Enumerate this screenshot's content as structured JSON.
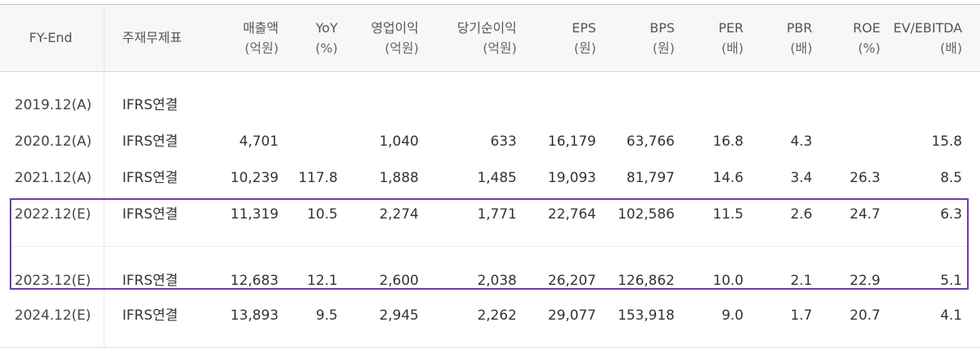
{
  "columns": [
    {
      "key": "fy",
      "label": "FY-End",
      "unit": ""
    },
    {
      "key": "std",
      "label": "주재무제표",
      "unit": ""
    },
    {
      "key": "sales",
      "label": "매출액",
      "unit": "(억원)"
    },
    {
      "key": "yoy",
      "label": "YoY",
      "unit": "(%)"
    },
    {
      "key": "op",
      "label": "영업이익",
      "unit": "(억원)"
    },
    {
      "key": "net",
      "label": "당기순이익",
      "unit": "(억원)"
    },
    {
      "key": "eps",
      "label": "EPS",
      "unit": "(원)"
    },
    {
      "key": "bps",
      "label": "BPS",
      "unit": "(원)"
    },
    {
      "key": "per",
      "label": "PER",
      "unit": "(배)"
    },
    {
      "key": "pbr",
      "label": "PBR",
      "unit": "(배)"
    },
    {
      "key": "roe",
      "label": "ROE",
      "unit": "(%)"
    },
    {
      "key": "ev",
      "label": "EV/EBITDA",
      "unit": "(배)"
    }
  ],
  "rows": [
    {
      "fy": "2019.12(A)",
      "std": "IFRS연결",
      "sales": "",
      "yoy": "",
      "op": "",
      "net": "",
      "eps": "",
      "bps": "",
      "per": "",
      "pbr": "",
      "roe": "",
      "ev": ""
    },
    {
      "fy": "2020.12(A)",
      "std": "IFRS연결",
      "sales": "4,701",
      "yoy": "",
      "op": "1,040",
      "net": "633",
      "eps": "16,179",
      "bps": "63,766",
      "per": "16.8",
      "pbr": "4.3",
      "roe": "",
      "ev": "15.8"
    },
    {
      "fy": "2021.12(A)",
      "std": "IFRS연결",
      "sales": "10,239",
      "yoy": "117.8",
      "op": "1,888",
      "net": "1,485",
      "eps": "19,093",
      "bps": "81,797",
      "per": "14.6",
      "pbr": "3.4",
      "roe": "26.3",
      "ev": "8.5"
    },
    {
      "fy": "2022.12(E)",
      "std": "IFRS연결",
      "sales": "11,319",
      "yoy": "10.5",
      "op": "2,274",
      "net": "1,771",
      "eps": "22,764",
      "bps": "102,586",
      "per": "11.5",
      "pbr": "2.6",
      "roe": "24.7",
      "ev": "6.3"
    },
    {
      "fy": "2023.12(E)",
      "std": "IFRS연결",
      "sales": "12,683",
      "yoy": "12.1",
      "op": "2,600",
      "net": "2,038",
      "eps": "26,207",
      "bps": "126,862",
      "per": "10.0",
      "pbr": "2.1",
      "roe": "22.9",
      "ev": "5.1"
    },
    {
      "fy": "2024.12(E)",
      "std": "IFRS연결",
      "sales": "13,893",
      "yoy": "9.5",
      "op": "2,945",
      "net": "2,262",
      "eps": "29,077",
      "bps": "153,918",
      "per": "9.0",
      "pbr": "1.7",
      "roe": "20.7",
      "ev": "4.1"
    }
  ],
  "highlight_color": "#6a3fa0"
}
